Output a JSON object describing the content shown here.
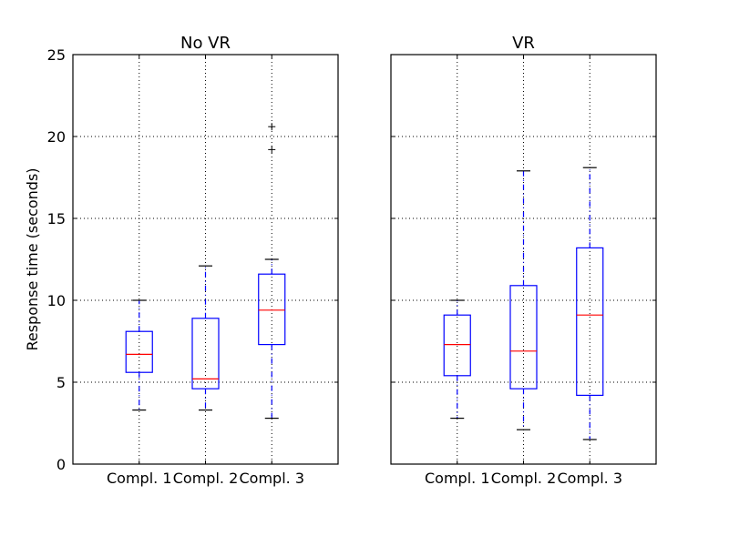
{
  "chart_data": [
    {
      "type": "box",
      "title": "No VR",
      "ylabel": "Response time (seconds)",
      "ylim": [
        0,
        25
      ],
      "yticks": [
        0,
        5,
        10,
        15,
        20,
        25
      ],
      "grid": true,
      "categories": [
        "Compl. 1",
        "Compl. 2",
        "Compl. 3"
      ],
      "boxes": [
        {
          "whislo": 3.3,
          "q1": 5.6,
          "med": 6.7,
          "q3": 8.1,
          "whishi": 10.0,
          "fliers": []
        },
        {
          "whislo": 3.3,
          "q1": 4.6,
          "med": 5.2,
          "q3": 8.9,
          "whishi": 12.1,
          "fliers": []
        },
        {
          "whislo": 2.8,
          "q1": 7.3,
          "med": 9.4,
          "q3": 11.6,
          "whishi": 12.5,
          "fliers": [
            19.2,
            20.6
          ]
        }
      ]
    },
    {
      "type": "box",
      "title": "VR",
      "ylabel": "",
      "ylim": [
        0,
        25
      ],
      "yticks": [
        0,
        5,
        10,
        15,
        20,
        25
      ],
      "grid": true,
      "categories": [
        "Compl. 1",
        "Compl. 2",
        "Compl. 3"
      ],
      "boxes": [
        {
          "whislo": 2.8,
          "q1": 5.4,
          "med": 7.3,
          "q3": 9.1,
          "whishi": 10.0,
          "fliers": []
        },
        {
          "whislo": 2.1,
          "q1": 4.6,
          "med": 6.9,
          "q3": 10.9,
          "whishi": 17.9,
          "fliers": []
        },
        {
          "whislo": 1.5,
          "q1": 4.2,
          "med": 9.1,
          "q3": 13.2,
          "whishi": 18.1,
          "fliers": []
        }
      ]
    }
  ]
}
